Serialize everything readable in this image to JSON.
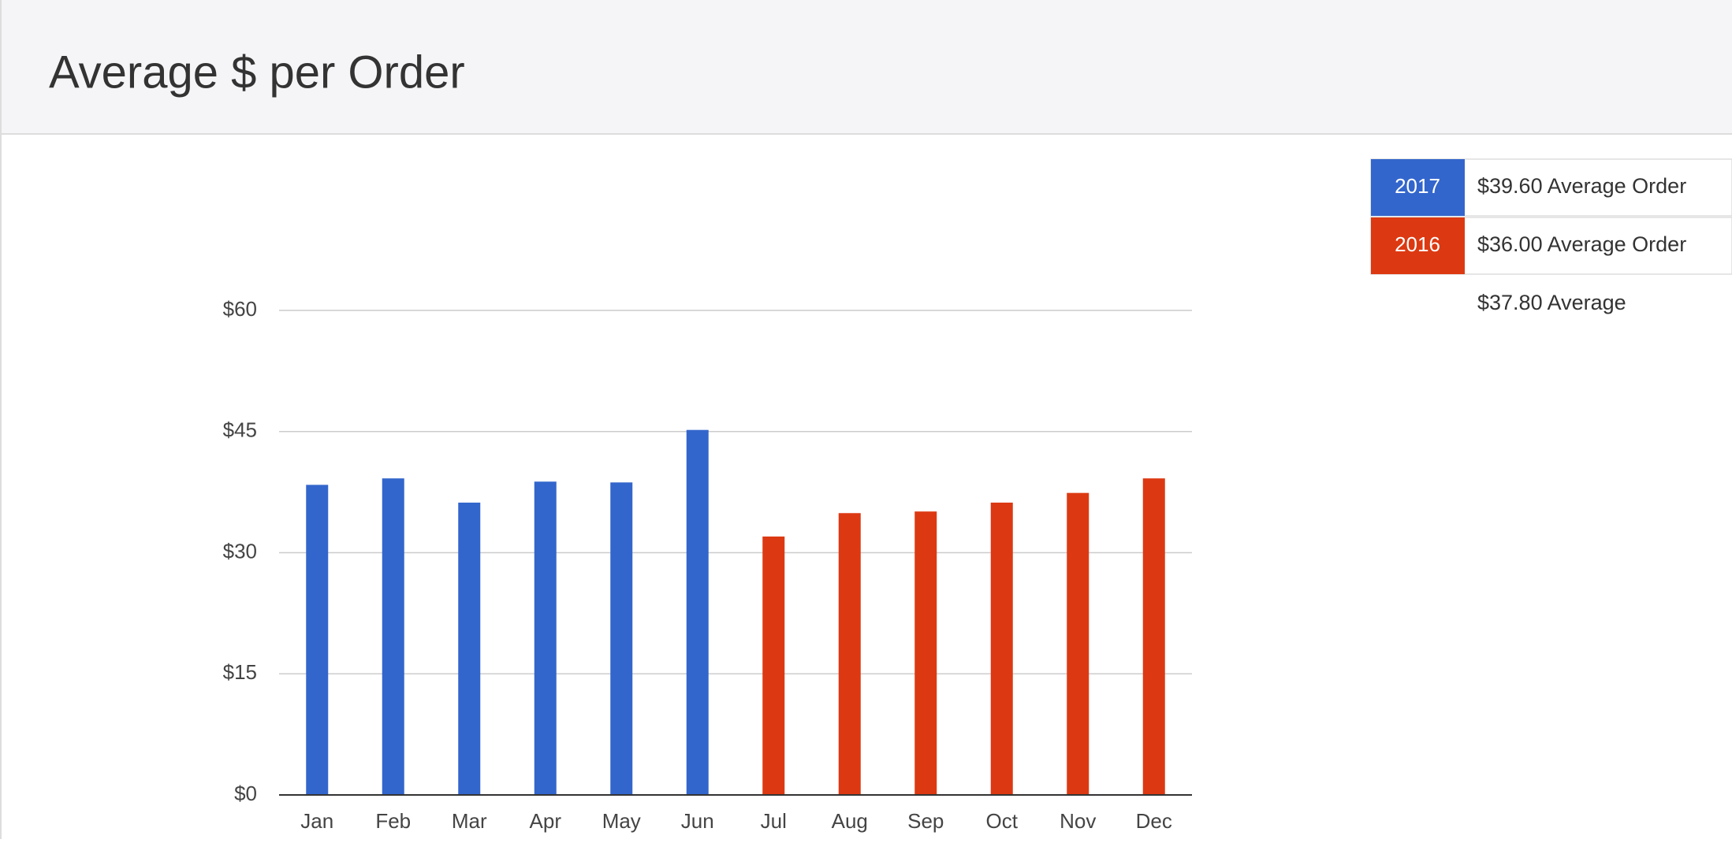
{
  "chart_data": {
    "type": "bar",
    "title": "Average $ per Order",
    "categories": [
      "Jan",
      "Feb",
      "Mar",
      "Apr",
      "May",
      "Jun",
      "Jul",
      "Aug",
      "Sep",
      "Oct",
      "Nov",
      "Dec"
    ],
    "series": [
      {
        "name": "2017",
        "color": "#3366cc",
        "values": [
          38.4,
          39.2,
          36.2,
          38.8,
          38.7,
          45.2,
          null,
          null,
          null,
          null,
          null,
          null
        ]
      },
      {
        "name": "2016",
        "color": "#dc3912",
        "values": [
          null,
          null,
          null,
          null,
          null,
          null,
          32.0,
          34.9,
          35.1,
          36.2,
          37.4,
          39.2
        ]
      }
    ],
    "ylim": [
      0,
      60
    ],
    "yticks": [
      {
        "value": 0,
        "label": "$0"
      },
      {
        "value": 15,
        "label": "$15"
      },
      {
        "value": 30,
        "label": "$30"
      },
      {
        "value": 45,
        "label": "$45"
      },
      {
        "value": 60,
        "label": "$60"
      }
    ],
    "grid": true,
    "summary": [
      "$39.60 Average Order",
      "$36.00 Average Order",
      "$37.80 Average"
    ]
  }
}
